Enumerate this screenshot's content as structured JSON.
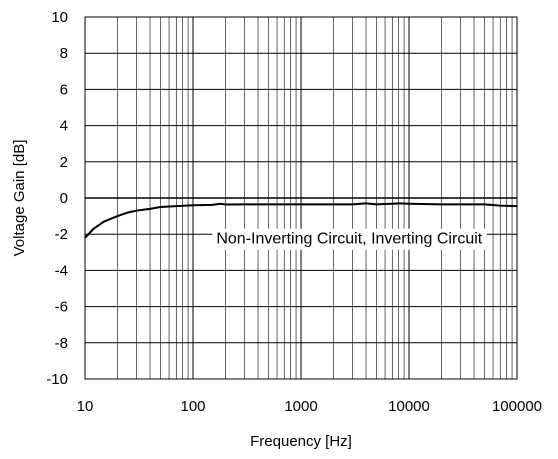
{
  "chart_data": {
    "type": "line",
    "title": "",
    "xlabel": "Frequency [Hz]",
    "ylabel": "Voltage Gain [dB]",
    "x_scale": "log",
    "xlim": [
      10,
      100000
    ],
    "ylim": [
      -10,
      10
    ],
    "x_ticks": [
      10,
      100,
      1000,
      10000,
      100000
    ],
    "x_tick_labels": [
      "10",
      "100",
      "1000",
      "10000",
      "100000"
    ],
    "y_ticks": [
      10,
      8,
      6,
      4,
      2,
      0,
      -2,
      -4,
      -6,
      -8,
      -10
    ],
    "y_tick_labels": [
      "10",
      "8",
      "6",
      "4",
      "2",
      "0",
      "-2",
      "-4",
      "-6",
      "-8",
      "-10"
    ],
    "grid": true,
    "legend": "none",
    "annotation": "Non-Inverting Circuit, Inverting Circuit",
    "colors": {
      "line": "#000000",
      "grid": "#000000",
      "background": "#ffffff"
    },
    "series": [
      {
        "x": [
          10,
          12,
          15,
          20,
          25,
          30,
          40,
          50,
          70,
          100,
          150,
          180,
          200,
          300,
          500,
          1000,
          2000,
          3000,
          4000,
          5000,
          7000,
          8000,
          10000,
          20000,
          50000,
          70000,
          100000
        ],
        "y": [
          -2.2,
          -1.7,
          -1.3,
          -1.0,
          -0.8,
          -0.7,
          -0.6,
          -0.5,
          -0.45,
          -0.4,
          -0.38,
          -0.32,
          -0.36,
          -0.35,
          -0.35,
          -0.35,
          -0.35,
          -0.35,
          -0.3,
          -0.35,
          -0.32,
          -0.3,
          -0.32,
          -0.35,
          -0.35,
          -0.42,
          -0.45
        ]
      }
    ]
  }
}
